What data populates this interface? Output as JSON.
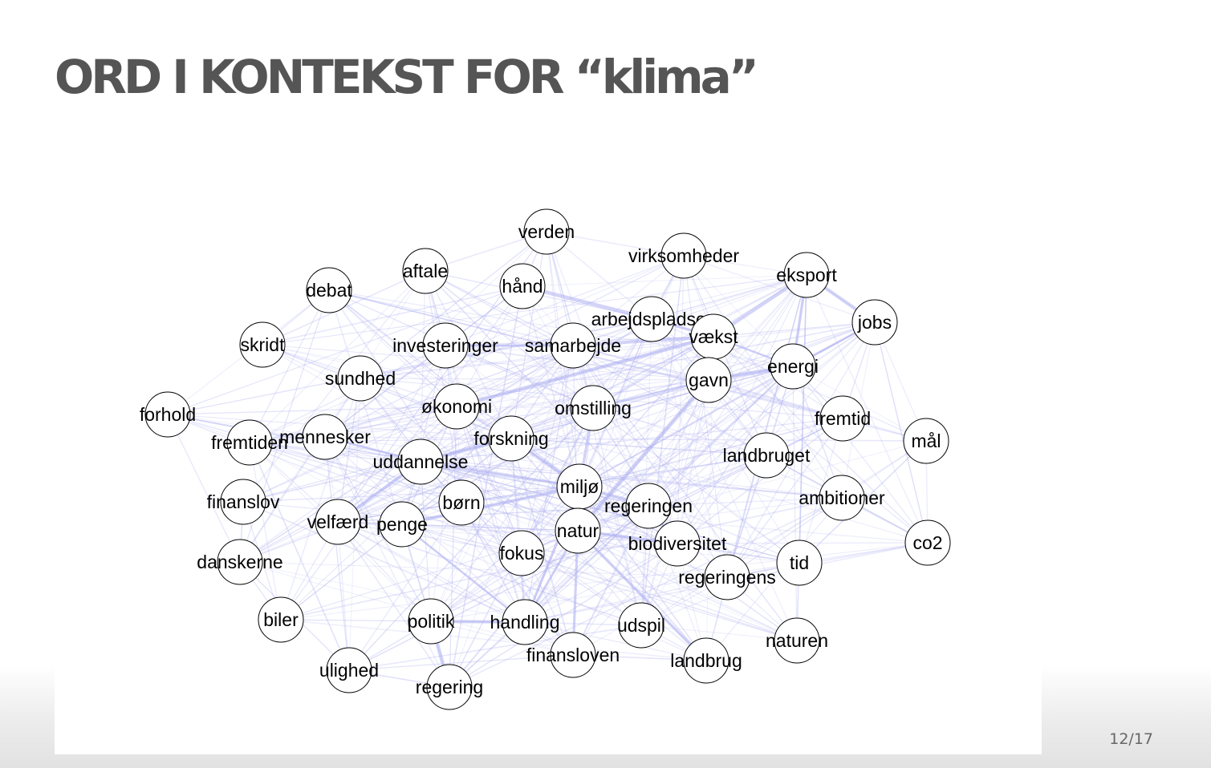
{
  "slide": {
    "title": "ORD I KONTEKST FOR “klima”",
    "page_number": "12/17"
  },
  "network": {
    "edge_color": "#aeb0f0",
    "nodes": [
      {
        "id": "verden"
      },
      {
        "id": "virksomheder"
      },
      {
        "id": "aftale"
      },
      {
        "id": "hånd"
      },
      {
        "id": "debat"
      },
      {
        "id": "eksport"
      },
      {
        "id": "arbejdspladser"
      },
      {
        "id": "jobs"
      },
      {
        "id": "skridt"
      },
      {
        "id": "investeringer"
      },
      {
        "id": "samarbejde"
      },
      {
        "id": "vækst"
      },
      {
        "id": "energi"
      },
      {
        "id": "sundhed"
      },
      {
        "id": "gavn"
      },
      {
        "id": "økonomi"
      },
      {
        "id": "omstilling"
      },
      {
        "id": "forhold"
      },
      {
        "id": "fremtid"
      },
      {
        "id": "fremtiden"
      },
      {
        "id": "mennesker"
      },
      {
        "id": "forskning"
      },
      {
        "id": "mål"
      },
      {
        "id": "uddannelse"
      },
      {
        "id": "landbruget"
      },
      {
        "id": "miljø"
      },
      {
        "id": "finanslov"
      },
      {
        "id": "børn"
      },
      {
        "id": "regeringen"
      },
      {
        "id": "ambitioner"
      },
      {
        "id": "velfærd"
      },
      {
        "id": "penge"
      },
      {
        "id": "natur"
      },
      {
        "id": "co2"
      },
      {
        "id": "biodiversitet"
      },
      {
        "id": "fokus"
      },
      {
        "id": "danskerne"
      },
      {
        "id": "tid"
      },
      {
        "id": "regeringens"
      },
      {
        "id": "biler"
      },
      {
        "id": "politik"
      },
      {
        "id": "handling"
      },
      {
        "id": "udspil"
      },
      {
        "id": "naturen"
      },
      {
        "id": "finansloven"
      },
      {
        "id": "landbrug"
      },
      {
        "id": "ulighed"
      },
      {
        "id": "regering"
      }
    ]
  }
}
